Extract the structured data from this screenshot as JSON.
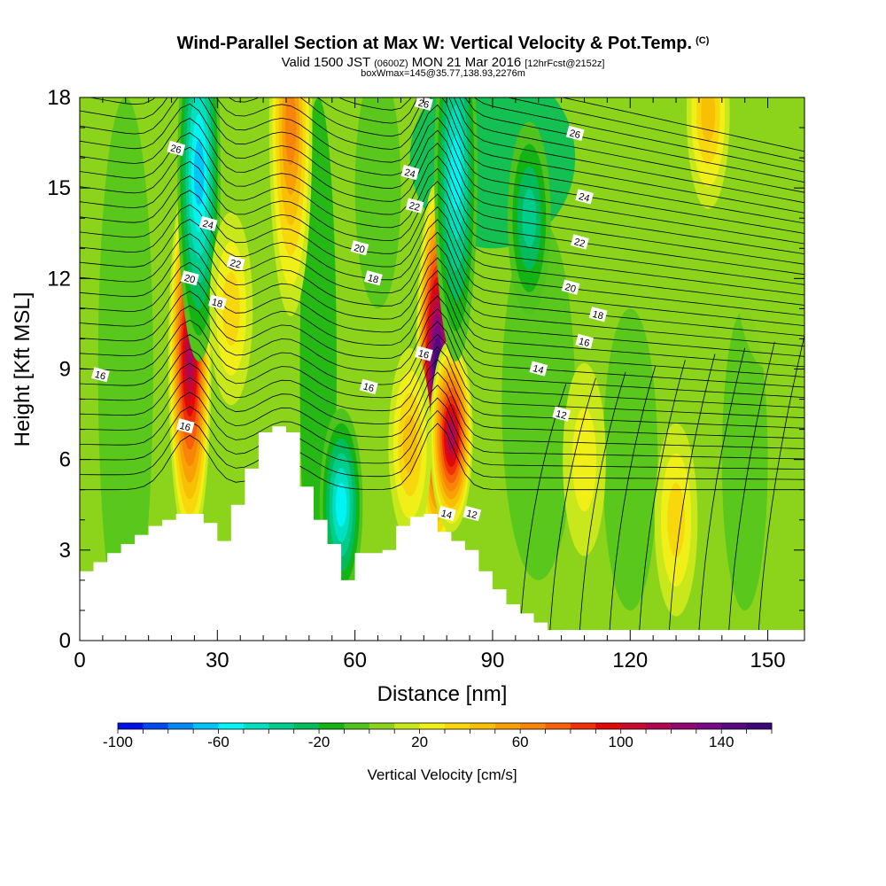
{
  "title": {
    "main": "Wind-Parallel Section at Max W: Vertical Velocity & Pot.Temp.",
    "copyright": "(C)",
    "valid_prefix": "Valid 1500 JST",
    "valid_utc": "(0600Z)",
    "valid_date": "MON 21 Mar 2016",
    "forecast": "[12hrFcst@2152z]",
    "box_info": "boxWmax=145@35.77,138.93,2276m"
  },
  "chart_data": {
    "type": "heatmap",
    "xlabel": "Distance [nm]",
    "ylabel": "Height [Kft MSL]",
    "xlim": [
      0,
      158
    ],
    "ylim": [
      0,
      18
    ],
    "x_ticks": [
      0,
      30,
      60,
      90,
      120,
      150
    ],
    "y_ticks": [
      0,
      3,
      6,
      9,
      12,
      15,
      18
    ],
    "colorbar": {
      "label": "Vertical Velocity [cm/s]",
      "min": -100,
      "max": 160,
      "step": 10,
      "tick_values": [
        -100,
        -60,
        -20,
        20,
        60,
        100,
        140
      ],
      "colors": [
        "#0010e8",
        "#0048f0",
        "#0088f4",
        "#00c4f8",
        "#00f4f4",
        "#00e0c0",
        "#00cc8c",
        "#00bc5c",
        "#14b414",
        "#50c41c",
        "#8cd41c",
        "#c8e81c",
        "#f0f018",
        "#f8d80c",
        "#f8c004",
        "#f8a004",
        "#f88408",
        "#f86008",
        "#f03008",
        "#e00808",
        "#c8082c",
        "#b00850",
        "#900870",
        "#780884",
        "#580880",
        "#3c0878"
      ]
    },
    "w_max": 145,
    "w_features": [
      {
        "x": 24,
        "z": 9.3,
        "w": 110
      },
      {
        "x": 78,
        "z": 9.0,
        "w": 145
      },
      {
        "x": 81,
        "z": 6.8,
        "w": 110
      },
      {
        "x": 82,
        "z": 15.5,
        "w": -60
      },
      {
        "x": 26,
        "z": 15.5,
        "w": -70
      },
      {
        "x": 46,
        "z": 17,
        "w": 60
      },
      {
        "x": 57,
        "z": 4.5,
        "w": -60
      },
      {
        "x": 72,
        "z": 6.5,
        "w": 40
      },
      {
        "x": 33,
        "z": 11,
        "w": 30
      },
      {
        "x": 130,
        "z": 4,
        "w": 25
      },
      {
        "x": 137,
        "z": 17.5,
        "w": 40
      },
      {
        "x": 110,
        "z": 6,
        "w": 15
      },
      {
        "x": 98,
        "z": 14,
        "w": -40
      }
    ],
    "theta_labels": [
      {
        "text": "26",
        "x": 21,
        "z": 16.3
      },
      {
        "text": "24",
        "x": 28,
        "z": 13.8
      },
      {
        "text": "22",
        "x": 34,
        "z": 12.5
      },
      {
        "text": "20",
        "x": 24,
        "z": 12.0
      },
      {
        "text": "18",
        "x": 30,
        "z": 11.2
      },
      {
        "text": "16",
        "x": 4.5,
        "z": 8.8
      },
      {
        "text": "16",
        "x": 23,
        "z": 7.1
      },
      {
        "text": "26",
        "x": 75,
        "z": 17.8
      },
      {
        "text": "24",
        "x": 72,
        "z": 15.5
      },
      {
        "text": "22",
        "x": 73,
        "z": 14.4
      },
      {
        "text": "20",
        "x": 61,
        "z": 13.0
      },
      {
        "text": "18",
        "x": 64,
        "z": 12.0
      },
      {
        "text": "16",
        "x": 63,
        "z": 8.4
      },
      {
        "text": "16",
        "x": 75,
        "z": 9.5
      },
      {
        "text": "14",
        "x": 80,
        "z": 4.2
      },
      {
        "text": "12",
        "x": 85.5,
        "z": 4.2
      },
      {
        "text": "26",
        "x": 108,
        "z": 16.8
      },
      {
        "text": "24",
        "x": 110,
        "z": 14.7
      },
      {
        "text": "22",
        "x": 109,
        "z": 13.2
      },
      {
        "text": "20",
        "x": 107,
        "z": 11.7
      },
      {
        "text": "18",
        "x": 113,
        "z": 10.8
      },
      {
        "text": "16",
        "x": 110,
        "z": 9.9
      },
      {
        "text": "14",
        "x": 100,
        "z": 9.0
      },
      {
        "text": "12",
        "x": 105,
        "z": 7.5
      }
    ],
    "terrain": {
      "x": [
        0,
        3,
        6,
        9,
        12,
        15,
        18,
        21,
        24,
        27,
        30,
        33,
        36,
        39,
        42,
        45,
        48,
        51,
        54,
        57,
        60,
        63,
        66,
        69,
        72,
        75,
        78,
        81,
        84,
        87,
        90,
        93,
        96,
        99,
        102,
        105
      ],
      "z": [
        2.3,
        2.6,
        2.9,
        3.2,
        3.5,
        3.8,
        4.0,
        4.2,
        4.2,
        3.9,
        3.3,
        4.5,
        5.7,
        6.9,
        7.1,
        6.9,
        5.1,
        4.0,
        3.2,
        2.0,
        2.9,
        2.9,
        3.0,
        3.8,
        4.1,
        4.2,
        3.6,
        3.3,
        3.0,
        2.3,
        1.7,
        1.2,
        0.9,
        0.6,
        0.35,
        0.35
      ]
    }
  }
}
